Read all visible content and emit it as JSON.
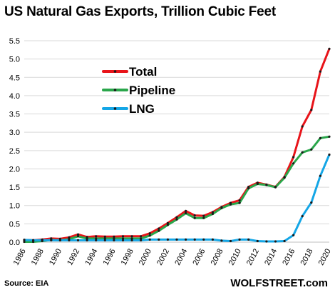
{
  "header": {
    "title": "US Natural Gas Exports, Trillion Cubic Feet"
  },
  "footer": {
    "source": "Source: EIA",
    "brand": "WOLFSTREET.com"
  },
  "chart_data": {
    "type": "line",
    "title": "US Natural Gas Exports, Trillion Cubic Feet",
    "xlabel": "",
    "ylabel": "",
    "ylim": [
      0,
      5.5
    ],
    "yticks": [
      "0.0",
      "0.5",
      "1.0",
      "1.5",
      "2.0",
      "2.5",
      "3.0",
      "3.5",
      "4.0",
      "4.5",
      "5.0",
      "5.5"
    ],
    "xtick_labels": [
      "1986",
      "1988",
      "1990",
      "1992",
      "1994",
      "1996",
      "1998",
      "2000",
      "2002",
      "2004",
      "2006",
      "2008",
      "2010",
      "2012",
      "2014",
      "2016",
      "2018",
      "2020"
    ],
    "x": [
      1986,
      1987,
      1988,
      1989,
      1990,
      1991,
      1992,
      1993,
      1994,
      1995,
      1996,
      1997,
      1998,
      1999,
      2000,
      2001,
      2002,
      2003,
      2004,
      2005,
      2006,
      2007,
      2008,
      2009,
      2010,
      2011,
      2012,
      2013,
      2014,
      2015,
      2016,
      2017,
      2018,
      2019,
      2020
    ],
    "grid": true,
    "legend_position": "top-left",
    "series": [
      {
        "name": "Total",
        "color": "#e8141a",
        "values": [
          0.06,
          0.05,
          0.07,
          0.1,
          0.09,
          0.13,
          0.21,
          0.14,
          0.16,
          0.15,
          0.15,
          0.16,
          0.16,
          0.16,
          0.24,
          0.37,
          0.52,
          0.68,
          0.85,
          0.73,
          0.72,
          0.82,
          0.96,
          1.07,
          1.14,
          1.51,
          1.62,
          1.57,
          1.51,
          1.78,
          2.32,
          3.16,
          3.61,
          4.66,
          5.28
        ]
      },
      {
        "name": "Pipeline",
        "color": "#2aa64b",
        "values": [
          0.01,
          0.01,
          0.03,
          0.06,
          0.05,
          0.08,
          0.16,
          0.1,
          0.1,
          0.1,
          0.1,
          0.1,
          0.1,
          0.1,
          0.18,
          0.31,
          0.47,
          0.62,
          0.79,
          0.66,
          0.66,
          0.77,
          0.93,
          1.03,
          1.07,
          1.47,
          1.59,
          1.56,
          1.5,
          1.76,
          2.15,
          2.45,
          2.53,
          2.84,
          2.88
        ]
      },
      {
        "name": "LNG",
        "color": "#14a6e6",
        "values": [
          0.06,
          0.05,
          0.05,
          0.05,
          0.05,
          0.05,
          0.05,
          0.05,
          0.05,
          0.05,
          0.05,
          0.05,
          0.05,
          0.05,
          0.07,
          0.07,
          0.07,
          0.07,
          0.07,
          0.07,
          0.07,
          0.07,
          0.04,
          0.03,
          0.07,
          0.07,
          0.03,
          0.02,
          0.02,
          0.03,
          0.19,
          0.71,
          1.08,
          1.81,
          2.39
        ]
      }
    ]
  }
}
